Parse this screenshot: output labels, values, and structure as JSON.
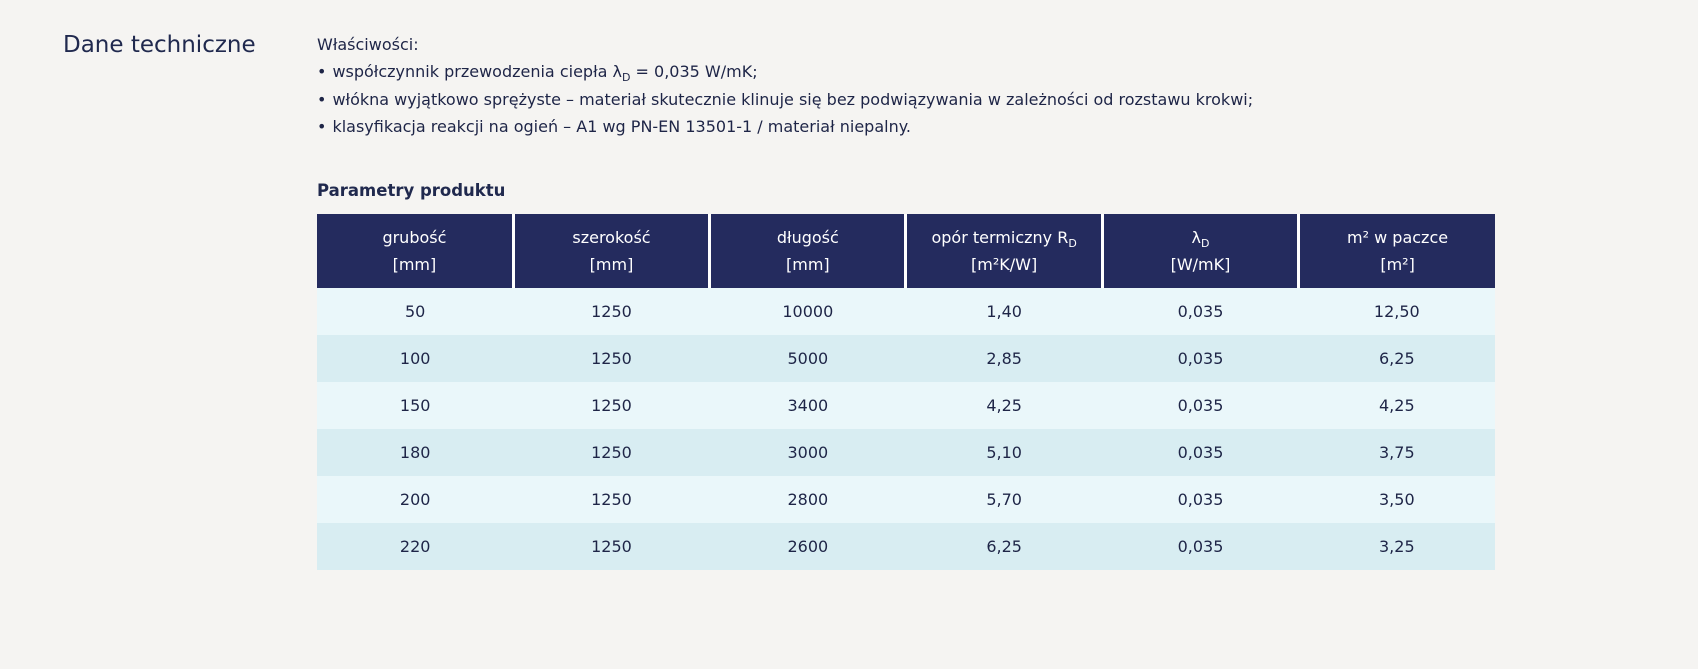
{
  "section": {
    "title": "Dane techniczne"
  },
  "properties": {
    "label": "Właściwości:",
    "bullet_char": "•",
    "items": [
      {
        "parts": [
          {
            "text": "współczynnik przewodzenia ciepła λ"
          },
          {
            "text": "D",
            "style": "sub"
          },
          {
            "text": " = 0,035 W/mK;"
          }
        ]
      },
      {
        "parts": [
          {
            "text": "włókna wyjątkowo sprężyste – materiał skutecznie klinuje się bez podwiązywania w zależności od rozstawu krokwi;"
          }
        ]
      },
      {
        "parts": [
          {
            "text": "klasyfikacja reakcji na ogień – A1 wg PN-EN 13501-1 / materiał niepalny."
          }
        ]
      }
    ]
  },
  "table": {
    "title": "Parametry produktu",
    "columns": [
      {
        "line1": [
          {
            "text": "grubość"
          }
        ],
        "line2": [
          {
            "text": "[mm]"
          }
        ]
      },
      {
        "line1": [
          {
            "text": "szerokość"
          }
        ],
        "line2": [
          {
            "text": "[mm]"
          }
        ]
      },
      {
        "line1": [
          {
            "text": "długość"
          }
        ],
        "line2": [
          {
            "text": "[mm]"
          }
        ]
      },
      {
        "line1": [
          {
            "text": "opór termiczny R"
          },
          {
            "text": "D",
            "style": "sub"
          }
        ],
        "line2": [
          {
            "text": "[m²K/W]"
          }
        ]
      },
      {
        "line1": [
          {
            "text": "λ"
          },
          {
            "text": "D",
            "style": "sub"
          }
        ],
        "line2": [
          {
            "text": "[W/mK]"
          }
        ]
      },
      {
        "line1": [
          {
            "text": "m² w paczce"
          }
        ],
        "line2": [
          {
            "text": "[m²]"
          }
        ]
      }
    ],
    "rows": [
      [
        "50",
        "1250",
        "10000",
        "1,40",
        "0,035",
        "12,50"
      ],
      [
        "100",
        "1250",
        "5000",
        "2,85",
        "0,035",
        "6,25"
      ],
      [
        "150",
        "1250",
        "3400",
        "4,25",
        "0,035",
        "4,25"
      ],
      [
        "180",
        "1250",
        "3000",
        "5,10",
        "0,035",
        "3,75"
      ],
      [
        "200",
        "1250",
        "2800",
        "5,70",
        "0,035",
        "3,50"
      ],
      [
        "220",
        "1250",
        "2600",
        "6,25",
        "0,035",
        "3,25"
      ]
    ]
  },
  "colors": {
    "page_bg": "#f5f4f2",
    "text": "#1e2547",
    "header_bg": "#242b5e",
    "header_text": "#ffffff",
    "row_odd": "#eaf7fa",
    "row_even": "#d8edf2"
  }
}
